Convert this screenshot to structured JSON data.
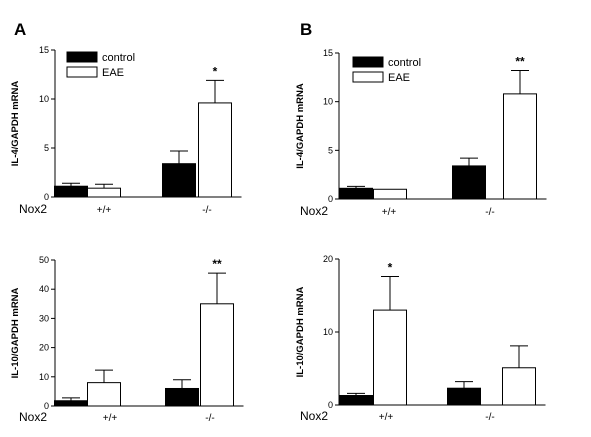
{
  "panel_letters": [
    "A",
    "B"
  ],
  "chart_data": [
    {
      "type": "bar",
      "panel": "A",
      "ylabel": "IL-4/GAPDH mRNA",
      "xlabel": "Nox2",
      "categories": [
        "+/+",
        "-/-"
      ],
      "ylim": [
        0,
        15
      ],
      "yticks": [
        0,
        5,
        10,
        15
      ],
      "legend": {
        "placement": "top-left",
        "entries": [
          "control",
          "EAE"
        ]
      },
      "series": [
        {
          "name": "control",
          "color": "#000000",
          "values": [
            1.1,
            3.4
          ],
          "errors": [
            0.3,
            1.3
          ]
        },
        {
          "name": "EAE",
          "color": "#ffffff",
          "values": [
            0.9,
            9.6
          ],
          "errors": [
            0.4,
            2.3
          ]
        }
      ],
      "annotations": [
        {
          "series": "EAE",
          "category": "-/-",
          "text": "*"
        }
      ]
    },
    {
      "type": "bar",
      "panel": "B",
      "ylabel": "IL-4/GAPDH mRNA",
      "xlabel": "Nox2",
      "categories": [
        "+/+",
        "-/-"
      ],
      "ylim": [
        0,
        15
      ],
      "yticks": [
        0,
        5,
        10,
        15
      ],
      "legend": {
        "placement": "top-left",
        "entries": [
          "control",
          "EAE"
        ]
      },
      "series": [
        {
          "name": "control",
          "color": "#000000",
          "values": [
            1.1,
            3.4
          ],
          "errors": [
            0.2,
            0.8
          ]
        },
        {
          "name": "EAE",
          "color": "#ffffff",
          "values": [
            1.0,
            10.8
          ],
          "errors": [
            0,
            2.4
          ]
        }
      ],
      "annotations": [
        {
          "series": "EAE",
          "category": "-/-",
          "text": "**"
        }
      ]
    },
    {
      "type": "bar",
      "panel": "A",
      "ylabel": "IL-10/GAPDH mRNA",
      "xlabel": "Nox2",
      "categories": [
        "+/+",
        "-/-"
      ],
      "ylim": [
        0,
        50
      ],
      "yticks": [
        0,
        10,
        20,
        30,
        40,
        50
      ],
      "series": [
        {
          "name": "control",
          "color": "#000000",
          "values": [
            1.8,
            6.0
          ],
          "errors": [
            1.0,
            3.0
          ]
        },
        {
          "name": "EAE",
          "color": "#ffffff",
          "values": [
            8.0,
            35.0
          ],
          "errors": [
            4.3,
            10.5
          ]
        }
      ],
      "annotations": [
        {
          "series": "EAE",
          "category": "-/-",
          "text": "**"
        }
      ]
    },
    {
      "type": "bar",
      "panel": "B",
      "ylabel": "IL-10/GAPDH mRNA",
      "xlabel": "Nox2",
      "categories": [
        "+/+",
        "-/-"
      ],
      "ylim": [
        0,
        20
      ],
      "yticks": [
        0,
        10,
        20
      ],
      "series": [
        {
          "name": "control",
          "color": "#000000",
          "values": [
            1.3,
            2.3
          ],
          "errors": [
            0.3,
            0.9
          ]
        },
        {
          "name": "EAE",
          "color": "#ffffff",
          "values": [
            13.0,
            5.1
          ],
          "errors": [
            4.6,
            3.0
          ]
        }
      ],
      "annotations": [
        {
          "series": "EAE",
          "category": "+/+",
          "text": "*"
        }
      ]
    }
  ]
}
